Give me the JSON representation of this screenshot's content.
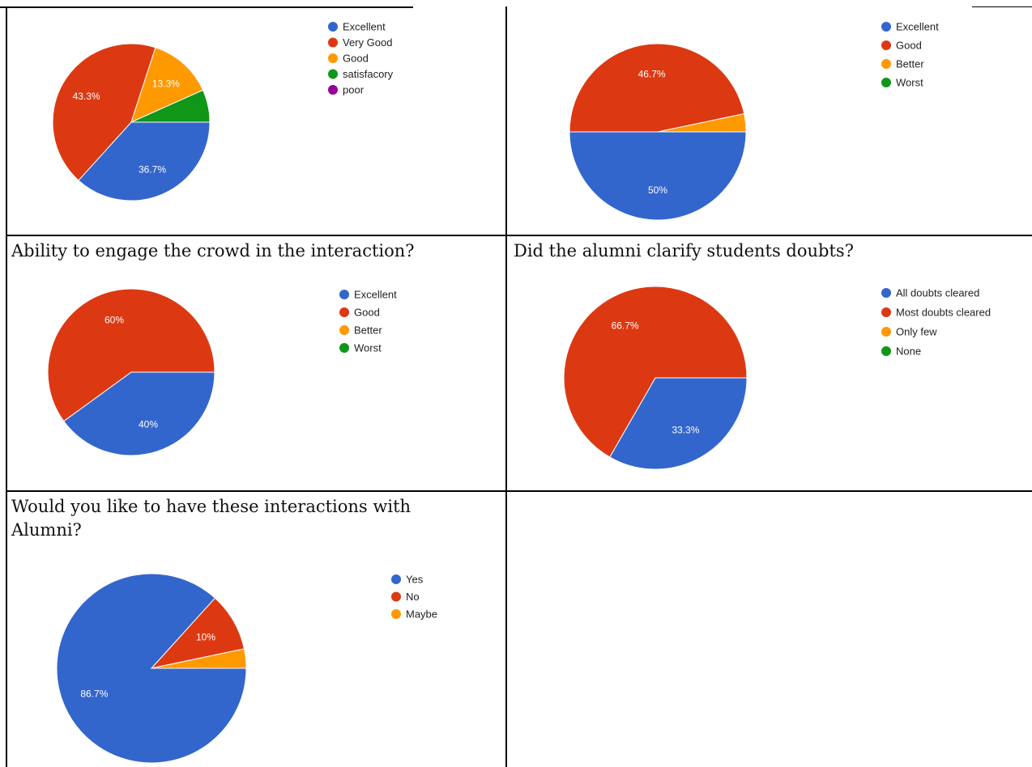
{
  "questions": {
    "q3": "Ability to engage the crowd in the interaction?",
    "q4": "Did the alumni clarify students doubts?",
    "q5": "Would you like to have these interactions with Alumni?"
  },
  "chart_data": [
    {
      "type": "pie",
      "title": "",
      "legend_position": "right",
      "slices": [
        {
          "label": "Excellent",
          "percent": 36.7,
          "display": "36.7%",
          "color": "#3366cc"
        },
        {
          "label": "Very Good",
          "percent": 43.3,
          "display": "43.3%",
          "color": "#dc3912"
        },
        {
          "label": "Good",
          "percent": 13.3,
          "display": "13.3%",
          "color": "#ff9900"
        },
        {
          "label": "satisfacory",
          "percent": 6.7,
          "display": "",
          "color": "#109618"
        },
        {
          "label": "poor",
          "percent": 0,
          "display": "",
          "color": "#990099"
        }
      ]
    },
    {
      "type": "pie",
      "title": "",
      "legend_position": "right",
      "slices": [
        {
          "label": "Excellent",
          "percent": 50,
          "display": "50%",
          "color": "#3366cc"
        },
        {
          "label": "Good",
          "percent": 46.7,
          "display": "46.7%",
          "color": "#dc3912"
        },
        {
          "label": "Better",
          "percent": 3.3,
          "display": "",
          "color": "#ff9900"
        },
        {
          "label": "Worst",
          "percent": 0,
          "display": "",
          "color": "#109618"
        }
      ]
    },
    {
      "type": "pie",
      "title": "",
      "legend_position": "right",
      "slices": [
        {
          "label": "Excellent",
          "percent": 40,
          "display": "40%",
          "color": "#3366cc"
        },
        {
          "label": "Good",
          "percent": 60,
          "display": "60%",
          "color": "#dc3912"
        },
        {
          "label": "Better",
          "percent": 0,
          "display": "",
          "color": "#ff9900"
        },
        {
          "label": "Worst",
          "percent": 0,
          "display": "",
          "color": "#109618"
        }
      ]
    },
    {
      "type": "pie",
      "title": "",
      "legend_position": "right",
      "slices": [
        {
          "label": "All doubts cleared",
          "percent": 33.3,
          "display": "33.3%",
          "color": "#3366cc"
        },
        {
          "label": "Most doubts cleared",
          "percent": 66.7,
          "display": "66.7%",
          "color": "#dc3912"
        },
        {
          "label": "Only few",
          "percent": 0,
          "display": "",
          "color": "#ff9900"
        },
        {
          "label": "None",
          "percent": 0,
          "display": "",
          "color": "#109618"
        }
      ]
    },
    {
      "type": "pie",
      "title": "",
      "legend_position": "right",
      "slices": [
        {
          "label": "Yes",
          "percent": 86.7,
          "display": "86.7%",
          "color": "#3366cc"
        },
        {
          "label": "No",
          "percent": 10,
          "display": "10%",
          "color": "#dc3912"
        },
        {
          "label": "Maybe",
          "percent": 3.3,
          "display": "",
          "color": "#ff9900"
        }
      ]
    }
  ]
}
